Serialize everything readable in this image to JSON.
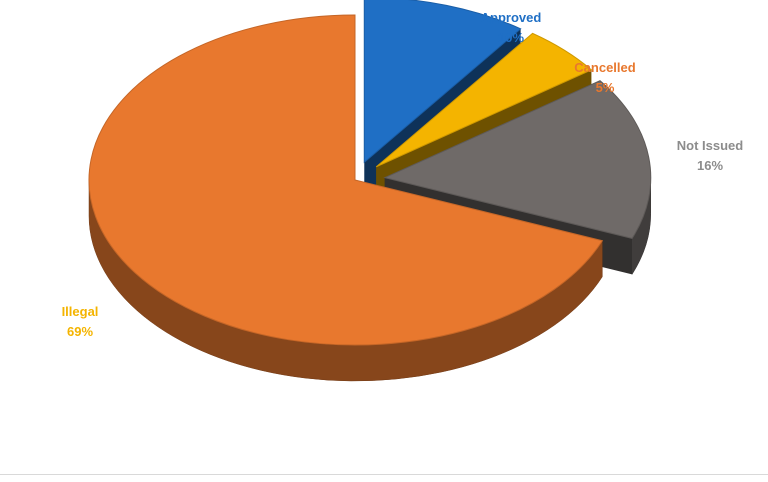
{
  "chart_data": {
    "type": "pie",
    "style": "3d-exploded",
    "slices": [
      {
        "label": "Approved",
        "value": 10,
        "display": "10%",
        "color": "#1f6fc5",
        "label_color": "#1f6fc5",
        "exploded": true
      },
      {
        "label": "Cancelled",
        "value": 5,
        "display": "5%",
        "color": "#f4b400",
        "label_color": "#e8782e",
        "exploded": true
      },
      {
        "label": "Not Issued",
        "value": 16,
        "display": "16%",
        "color": "#6f6a68",
        "label_color": "#8c8c8c",
        "exploded": true
      },
      {
        "label": "Illegal",
        "value": 69,
        "display": "69%",
        "color": "#e8782e",
        "label_color": "#f4b400",
        "exploded": false
      }
    ],
    "title": "",
    "legend": "none"
  }
}
